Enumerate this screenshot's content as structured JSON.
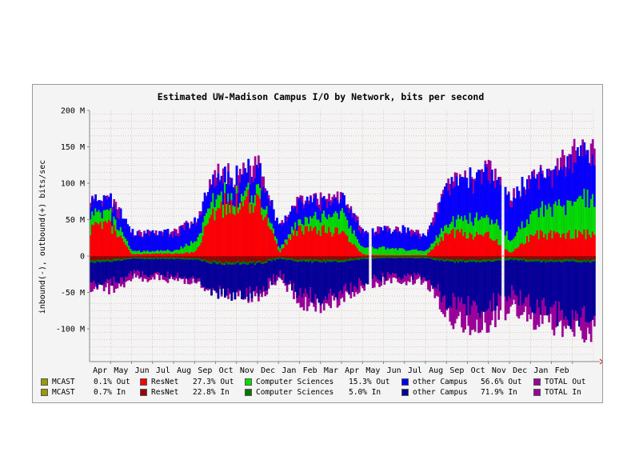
{
  "chart_data": {
    "type": "area",
    "title": "Estimated UW-Madison Campus I/O by Network, bits per second",
    "ylabel": "inbound(-), outbound(+) bits/sec",
    "ylim": [
      -145,
      200
    ],
    "yticks": [
      {
        "v": 200,
        "label": "200 M"
      },
      {
        "v": 150,
        "label": "150 M"
      },
      {
        "v": 100,
        "label": "100 M"
      },
      {
        "v": 50,
        "label": "50 M"
      },
      {
        "v": 0,
        "label": "0"
      },
      {
        "v": -50,
        "label": "-50 M"
      },
      {
        "v": -100,
        "label": "-100 M"
      }
    ],
    "xticks": [
      "Apr",
      "May",
      "Jun",
      "Jul",
      "Aug",
      "Sep",
      "Oct",
      "Nov",
      "Dec",
      "Jan",
      "Feb",
      "Mar",
      "Apr",
      "May",
      "Jun",
      "Jul",
      "Aug",
      "Sep",
      "Oct",
      "Nov",
      "Dec",
      "Jan",
      "Feb"
    ],
    "x_months": [
      "Mar",
      "Apr",
      "May",
      "Jun",
      "Jul",
      "Aug",
      "Sep",
      "Oct",
      "Nov",
      "Dec",
      "Jan",
      "Feb",
      "Mar",
      "Apr",
      "May",
      "Jun",
      "Jul",
      "Aug",
      "Sep",
      "Oct",
      "Nov",
      "Dec",
      "Jan",
      "Feb"
    ],
    "series": [
      {
        "name": "ResNet",
        "direction": "out",
        "color": "#ff0000",
        "values": [
          38,
          40,
          2,
          3,
          3,
          5,
          68,
          72,
          78,
          5,
          40,
          35,
          30,
          2,
          1,
          1,
          1,
          30,
          30,
          30,
          4,
          28,
          30,
          30
        ]
      },
      {
        "name": "Computer Sciences",
        "direction": "out",
        "color": "#00dd00",
        "values": [
          18,
          15,
          4,
          4,
          5,
          15,
          18,
          10,
          15,
          5,
          10,
          20,
          25,
          10,
          10,
          8,
          6,
          12,
          22,
          25,
          20,
          28,
          40,
          45
        ]
      },
      {
        "name": "other Campus",
        "direction": "out",
        "color": "#0000ff",
        "values": [
          18,
          17,
          25,
          24,
          24,
          27,
          24,
          25,
          28,
          28,
          25,
          20,
          20,
          22,
          24,
          26,
          20,
          48,
          55,
          60,
          55,
          45,
          45,
          60
        ]
      },
      {
        "name": "MCAST",
        "direction": "out",
        "color": "#999900",
        "values": [
          0,
          0,
          0,
          0,
          0,
          0,
          0,
          0,
          0,
          0,
          0,
          0,
          0,
          0,
          0,
          0,
          0,
          0,
          0,
          0,
          0,
          0,
          0,
          0
        ]
      },
      {
        "name": "ResNet",
        "direction": "in",
        "color": "#990000",
        "values": [
          -5,
          -5,
          -2,
          -2,
          -2,
          -3,
          -8,
          -8,
          -8,
          -2,
          -5,
          -5,
          -5,
          -2,
          -1,
          -1,
          -1,
          -5,
          -5,
          -5,
          -2,
          -5,
          -5,
          -5
        ]
      },
      {
        "name": "Computer Sciences",
        "direction": "in",
        "color": "#007700",
        "values": [
          -3,
          -3,
          -2,
          -2,
          -2,
          -2,
          -3,
          -3,
          -3,
          -2,
          -3,
          -3,
          -3,
          -2,
          -2,
          -2,
          -2,
          -3,
          -3,
          -3,
          -3,
          -3,
          -3,
          -3
        ]
      },
      {
        "name": "other Campus",
        "direction": "in",
        "color": "#000099",
        "values": [
          -30,
          -30,
          -20,
          -20,
          -22,
          -25,
          -38,
          -40,
          -42,
          -20,
          -45,
          -48,
          -42,
          -30,
          -25,
          -25,
          -25,
          -55,
          -62,
          -60,
          -45,
          -60,
          -70,
          -75
        ]
      },
      {
        "name": "TOTAL",
        "direction": "envelope",
        "color": "#990099",
        "values_out": [
          80,
          75,
          32,
          31,
          33,
          50,
          112,
          110,
          122,
          40,
          78,
          78,
          80,
          35,
          36,
          36,
          28,
          95,
          110,
          118,
          82,
          103,
          118,
          140
        ],
        "values_in": [
          -45,
          -45,
          -30,
          -30,
          -32,
          -35,
          -50,
          -52,
          -58,
          -30,
          -62,
          -66,
          -60,
          -40,
          -35,
          -35,
          -35,
          -85,
          -92,
          -90,
          -70,
          -85,
          -95,
          -100
        ]
      }
    ],
    "gaps": [
      13.3,
      19.6
    ],
    "grid": true
  },
  "legend": {
    "rows": [
      [
        {
          "label": "MCAST",
          "stat": "0.1% Out",
          "color": "#999900"
        },
        {
          "label": "ResNet",
          "stat": "27.3% Out",
          "color": "#ff0000"
        },
        {
          "label": "Computer Sciences",
          "stat": "15.3% Out",
          "color": "#00dd00"
        },
        {
          "label": "other Campus",
          "stat": "56.6% Out",
          "color": "#0000ff"
        },
        {
          "label": "TOTAL Out",
          "stat": "",
          "color": "#990099"
        }
      ],
      [
        {
          "label": "MCAST",
          "stat": "0.7% In",
          "color": "#999900"
        },
        {
          "label": "ResNet",
          "stat": "22.8% In",
          "color": "#990000"
        },
        {
          "label": "Computer Sciences",
          "stat": "5.0% In",
          "color": "#007700"
        },
        {
          "label": "other Campus",
          "stat": "71.9% In",
          "color": "#000099"
        },
        {
          "label": "TOTAL In",
          "stat": "",
          "color": "#990099"
        }
      ]
    ]
  }
}
